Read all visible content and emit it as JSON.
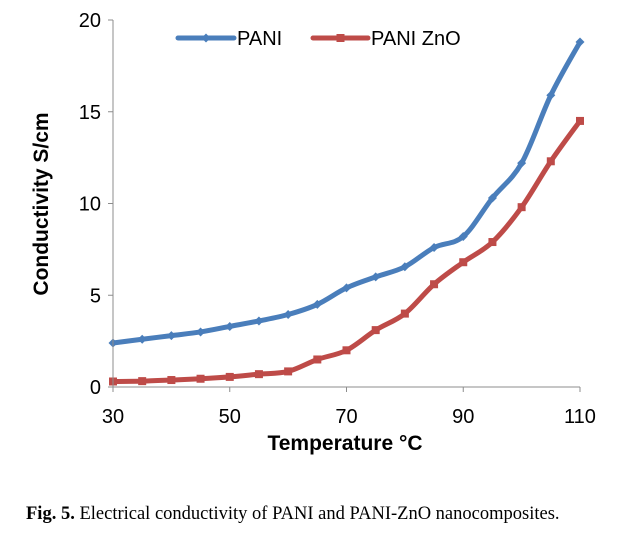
{
  "chart_data": {
    "type": "line",
    "xlabel": "Temperature °C",
    "ylabel": "Conductivity S/cm",
    "xlim": [
      30,
      110
    ],
    "ylim": [
      0,
      20
    ],
    "xticks": [
      30,
      50,
      70,
      90,
      110
    ],
    "yticks": [
      0,
      5,
      10,
      15,
      20
    ],
    "grid": false,
    "legend_position": "top",
    "x": [
      30,
      35,
      40,
      45,
      50,
      55,
      60,
      65,
      70,
      75,
      80,
      85,
      90,
      95,
      100,
      105,
      110
    ],
    "series": [
      {
        "name": "PANI",
        "color": "#4a7ebb",
        "marker": "diamond",
        "values": [
          2.4,
          2.6,
          2.8,
          3.0,
          3.3,
          3.6,
          3.95,
          4.5,
          5.4,
          6.0,
          6.55,
          7.6,
          8.2,
          10.3,
          12.2,
          15.9,
          18.8
        ]
      },
      {
        "name": "PANI ZnO",
        "color": "#be4b48",
        "marker": "square",
        "values": [
          0.3,
          0.32,
          0.38,
          0.45,
          0.55,
          0.7,
          0.85,
          1.5,
          2.0,
          3.1,
          4.0,
          5.6,
          6.8,
          7.9,
          9.8,
          12.3,
          14.5
        ]
      }
    ]
  },
  "caption": {
    "label": "Fig. 5.",
    "text": "Electrical conductivity of PANI and PANI-ZnO nanocomposites."
  }
}
